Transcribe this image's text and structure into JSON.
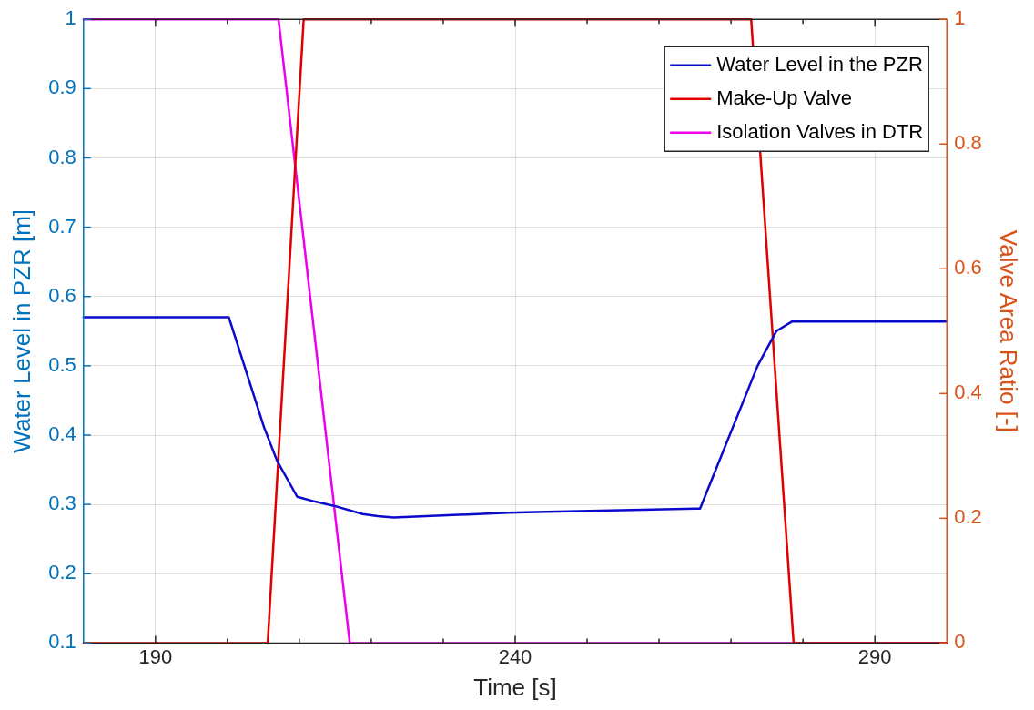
{
  "chart_data": {
    "type": "line",
    "xlabel": "Time [s]",
    "ylabel": "Water Level in PZR [m]",
    "y2label": "Valve Area Ratio [-]",
    "xlim": [
      180,
      300
    ],
    "xticks": [
      {
        "value": 190,
        "label": "190"
      },
      {
        "value": 200,
        "label": null
      },
      {
        "value": 210,
        "label": null
      },
      {
        "value": 220,
        "label": null
      },
      {
        "value": 230,
        "label": null
      },
      {
        "value": 240,
        "label": "240"
      },
      {
        "value": 250,
        "label": null
      },
      {
        "value": 260,
        "label": null
      },
      {
        "value": 270,
        "label": null
      },
      {
        "value": 280,
        "label": null
      },
      {
        "value": 290,
        "label": "290"
      }
    ],
    "ylim": [
      0.1,
      1
    ],
    "yticks": [
      0.1,
      0.2,
      0.3,
      0.4,
      0.5,
      0.6,
      0.7,
      0.8,
      0.9,
      1
    ],
    "y2lim": [
      0,
      1
    ],
    "y2ticks": [
      0,
      0.2,
      0.4,
      0.6,
      0.8,
      1
    ],
    "grid": true,
    "legend": "top right",
    "marker": "none",
    "line_style": "solid",
    "series": [
      {
        "name": "Water Level in the PZR",
        "color": "#0a0acc",
        "x": [
          180,
          200.2,
          205.1,
          206.9,
          209.7,
          212.2,
          214.8,
          218.8,
          220.9,
          223.1,
          239,
          242.9,
          265.7,
          273.7,
          276.3,
          278.5,
          300
        ],
        "values": [
          0.57,
          0.57,
          0.411,
          0.363,
          0.311,
          0.304,
          0.298,
          0.286,
          0.283,
          0.281,
          0.288,
          0.289,
          0.294,
          0.5,
          0.55,
          0.564,
          0.564
        ]
      },
      {
        "name": "Make-Up Valve",
        "color": "#e00000",
        "axis": "y2",
        "x": [
          180,
          205.6,
          210.6,
          272.8,
          278.7,
          300
        ],
        "values": [
          0,
          0,
          1,
          1,
          0,
          0
        ]
      },
      {
        "name": "Isolation Valves in DTR",
        "color": "#ee00ee",
        "axis": "y2",
        "x": [
          180,
          207.1,
          217.0,
          300
        ],
        "values": [
          1,
          1,
          0,
          0
        ]
      }
    ]
  }
}
